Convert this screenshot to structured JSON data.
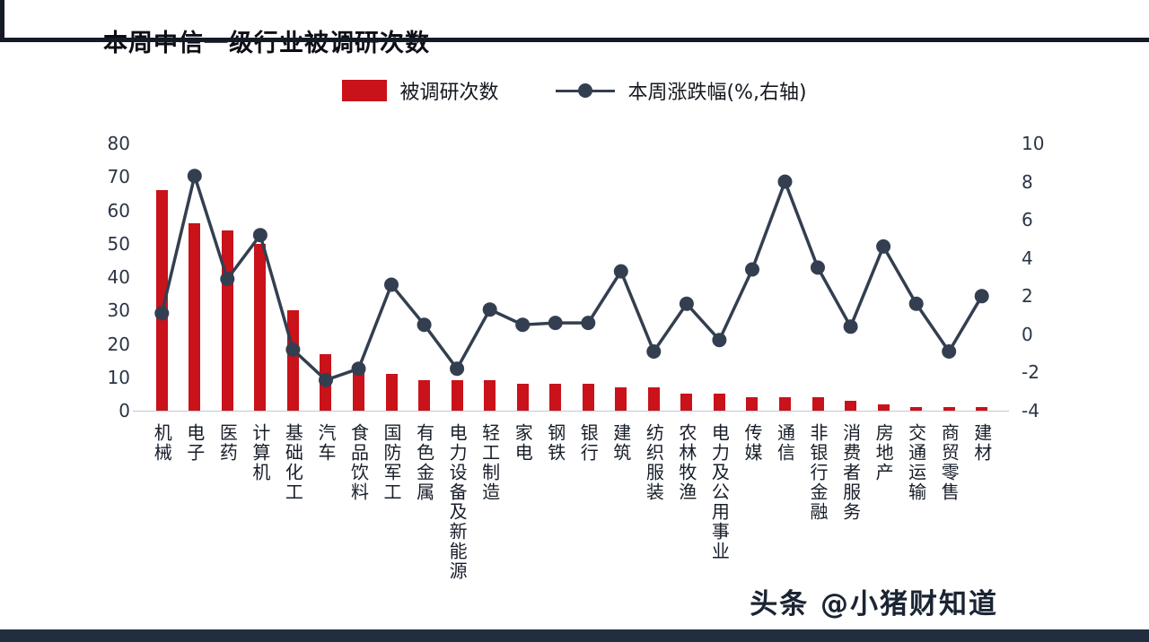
{
  "header": {
    "title": "本周中信一级行业被调研次数"
  },
  "legend": {
    "bar_label": "被调研次数",
    "line_label": "本周涨跌幅(%,右轴)"
  },
  "footer": {
    "watermark": "头条 @小猪财知道"
  },
  "colors": {
    "bar": "#c9121a",
    "line": "#333f50",
    "accent_dark": "#141a26",
    "bottom_bar": "#222e40",
    "axis_text": "#2b3546",
    "watermark_text": "#1a2433"
  },
  "chart_data": {
    "type": "bar",
    "subtype": "bar+line combo",
    "title": "本周中信一级行业被调研次数",
    "grid": false,
    "legend_position": "top",
    "categories": [
      "机械",
      "电子",
      "医药",
      "计算机",
      "基础化工",
      "汽车",
      "食品饮料",
      "国防军工",
      "有色金属",
      "电力设备及新能源",
      "轻工制造",
      "家电",
      "钢铁",
      "银行",
      "建筑",
      "纺织服装",
      "农林牧渔",
      "电力及公用事业",
      "传媒",
      "通信",
      "非银行金融",
      "消费者服务",
      "房地产",
      "交通运输",
      "商贸零售",
      "建材"
    ],
    "series": [
      {
        "name": "被调研次数",
        "type": "bar",
        "axis": "left",
        "values": [
          66,
          56,
          54,
          50,
          30,
          17,
          12,
          11,
          9,
          9,
          9,
          8,
          8,
          8,
          7,
          7,
          5,
          5,
          4,
          4,
          4,
          3,
          2,
          1,
          1,
          1
        ]
      },
      {
        "name": "本周涨跌幅(%,右轴)",
        "type": "line",
        "axis": "right",
        "values": [
          1.1,
          8.3,
          2.9,
          5.2,
          -0.8,
          -2.4,
          -1.8,
          2.6,
          0.5,
          -1.8,
          1.3,
          0.5,
          0.6,
          0.6,
          3.3,
          -0.9,
          1.6,
          -0.3,
          3.4,
          8.0,
          3.5,
          0.4,
          4.6,
          1.6,
          -0.9,
          2.0
        ]
      }
    ],
    "left_axis": {
      "min": 0,
      "max": 80,
      "step": 10,
      "ticks": [
        0,
        10,
        20,
        30,
        40,
        50,
        60,
        70,
        80
      ]
    },
    "right_axis": {
      "min": -4,
      "max": 10,
      "step": 2,
      "ticks": [
        -4,
        -2,
        0,
        2,
        4,
        6,
        8,
        10
      ]
    }
  }
}
